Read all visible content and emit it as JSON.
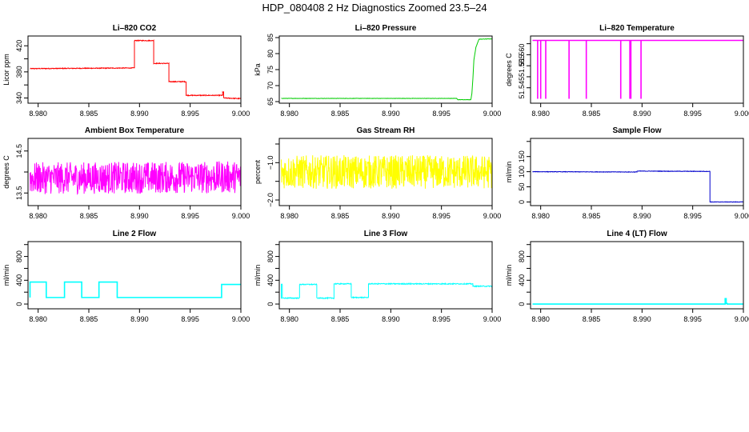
{
  "figure": {
    "title": "HDP_080408  2 Hz Diagnostics Zoomed 23.5–24"
  },
  "chart_data": [
    {
      "type": "line",
      "title": "Li–820 CO2",
      "xlabel": "",
      "ylabel": "Licor ppm",
      "color": "#ff0000",
      "xlim": [
        8.979,
        9.0
      ],
      "ylim": [
        332,
        435
      ],
      "xticks": [
        "8.980",
        "8.985",
        "8.990",
        "8.995",
        "9.000"
      ],
      "yticks": [
        340,
        360,
        380,
        400,
        420
      ],
      "ytick_labels": [
        "340",
        "",
        "380",
        "",
        "420"
      ],
      "noise": 0.6,
      "series": [
        {
          "x": [
            8.9792,
            8.9895,
            8.9895,
            8.9914,
            8.9914,
            8.9929,
            8.9929,
            8.9946,
            8.9946,
            8.9982,
            8.9982,
            8.9983,
            8.9983,
            9.0
          ],
          "y": [
            385,
            386,
            428,
            428,
            393,
            393,
            365,
            365,
            344,
            344,
            349,
            349,
            340,
            339
          ]
        }
      ]
    },
    {
      "type": "line",
      "title": "Li–820 Pressure",
      "xlabel": "",
      "ylabel": "kPa",
      "color": "#00cc00",
      "xlim": [
        8.979,
        9.0
      ],
      "ylim": [
        64.5,
        85.5
      ],
      "xticks": [
        "8.980",
        "8.985",
        "8.990",
        "8.995",
        "9.000"
      ],
      "yticks": [
        65,
        70,
        75,
        80,
        85
      ],
      "ytick_labels": [
        "65",
        "70",
        "75",
        "80",
        "85"
      ],
      "noise": 0.05,
      "series": [
        {
          "x": [
            8.9792,
            8.9965,
            8.9966,
            8.9979,
            8.998,
            8.9981,
            8.9982,
            8.9984,
            8.9987,
            9.0
          ],
          "y": [
            66.0,
            66.0,
            65.6,
            65.6,
            67.5,
            72,
            78,
            82,
            84.5,
            84.6
          ]
        }
      ]
    },
    {
      "type": "line",
      "title": "Li–820 Temperature",
      "xlabel": "",
      "ylabel": "degrees C",
      "color": "#ff00ff",
      "xlim": [
        8.979,
        9.0
      ],
      "ylim": [
        51.538,
        51.5685
      ],
      "xticks": [
        "8.980",
        "8.985",
        "8.990",
        "8.995",
        "9.000"
      ],
      "yticks": [
        51.545,
        51.55,
        51.555,
        51.56,
        51.565
      ],
      "ytick_labels": [
        "51.545",
        "",
        "51.555",
        "51.560",
        ""
      ],
      "noise": 0,
      "series": [
        {
          "x": [
            8.9792,
            8.9797,
            8.9797,
            8.9797,
            8.98,
            8.98,
            8.98,
            8.9805,
            8.9805,
            8.9805,
            8.9828,
            8.9828,
            8.9828,
            8.9845,
            8.9845,
            8.9845,
            8.9879,
            8.9879,
            8.9879,
            8.9888,
            8.9888,
            8.9888,
            8.9889,
            8.9889,
            8.9889,
            8.9899,
            8.9899,
            8.9899,
            9.0
          ],
          "y": [
            51.5665,
            51.5665,
            51.54,
            51.5665,
            51.5665,
            51.54,
            51.5665,
            51.5665,
            51.54,
            51.5665,
            51.5665,
            51.54,
            51.5665,
            51.5665,
            51.54,
            51.5665,
            51.5665,
            51.54,
            51.5665,
            51.5665,
            51.54,
            51.5665,
            51.5665,
            51.54,
            51.5665,
            51.5665,
            51.54,
            51.5665,
            51.5665
          ]
        }
      ]
    },
    {
      "type": "line",
      "title": "Ambient Box Temperature",
      "xlabel": "",
      "ylabel": "degrees C",
      "color": "#ff00ff",
      "xlim": [
        8.979,
        9.0
      ],
      "ylim": [
        13.2,
        14.8
      ],
      "xticks": [
        "8.980",
        "8.985",
        "8.990",
        "8.995",
        "9.000"
      ],
      "yticks": [
        13.5,
        14.0,
        14.5
      ],
      "ytick_labels": [
        "13.5",
        "",
        "14.5"
      ],
      "noise": 0.38,
      "series": [
        {
          "x": [
            8.9792,
            9.0
          ],
          "y": [
            13.85,
            13.88
          ]
        }
      ]
    },
    {
      "type": "line",
      "title": "Gas Stream RH",
      "xlabel": "",
      "ylabel": "percent",
      "color": "#ffff00",
      "xlim": [
        8.979,
        9.0
      ],
      "ylim": [
        -2.15,
        -0.35
      ],
      "xticks": [
        "8.980",
        "8.985",
        "8.990",
        "8.995",
        "9.000"
      ],
      "yticks": [
        -2.0,
        -1.5,
        -1.0,
        -0.5
      ],
      "ytick_labels": [
        "−2.0",
        "",
        "−1.0",
        ""
      ],
      "noise": 0.45,
      "series": [
        {
          "x": [
            8.9792,
            9.0
          ],
          "y": [
            -1.25,
            -1.25
          ]
        }
      ]
    },
    {
      "type": "line",
      "title": "Sample Flow",
      "xlabel": "",
      "ylabel": "ml/min",
      "color": "#0000cc",
      "xlim": [
        8.979,
        9.0
      ],
      "ylim": [
        -12,
        210
      ],
      "xticks": [
        "8.980",
        "8.985",
        "8.990",
        "8.995",
        "9.000"
      ],
      "yticks": [
        0,
        50,
        100,
        150,
        200
      ],
      "ytick_labels": [
        "0",
        "50",
        "100",
        "150",
        ""
      ],
      "noise": 0.8,
      "series": [
        {
          "x": [
            8.9792,
            8.9895,
            8.9895,
            8.9967,
            8.9967,
            9.0
          ],
          "y": [
            100,
            99,
            102,
            101,
            0,
            0
          ]
        }
      ]
    },
    {
      "type": "line",
      "title": "Line 2 Flow",
      "xlabel": "",
      "ylabel": "ml/min",
      "color": "#00ffff",
      "xlim": [
        8.979,
        9.0
      ],
      "ylim": [
        -80,
        1050
      ],
      "xticks": [
        "8.980",
        "8.985",
        "8.990",
        "8.995",
        "9.000"
      ],
      "yticks": [
        0,
        200,
        400,
        600,
        800,
        1000
      ],
      "ytick_labels": [
        "0",
        "",
        "400",
        "",
        "800",
        ""
      ],
      "noise": 0,
      "series": [
        {
          "x": [
            8.9792,
            8.9792,
            8.9808,
            8.9808,
            8.9826,
            8.9826,
            8.9843,
            8.9843,
            8.986,
            8.986,
            8.9878,
            8.9878,
            8.9981,
            8.9981,
            9.0
          ],
          "y": [
            110,
            370,
            370,
            110,
            110,
            370,
            370,
            110,
            110,
            370,
            370,
            110,
            110,
            330,
            330
          ]
        }
      ]
    },
    {
      "type": "line",
      "title": "Line 3 Flow",
      "xlabel": "",
      "ylabel": "ml/min",
      "color": "#00ffff",
      "xlim": [
        8.979,
        9.0
      ],
      "ylim": [
        -80,
        1050
      ],
      "xticks": [
        "8.980",
        "8.985",
        "8.990",
        "8.995",
        "9.000"
      ],
      "yticks": [
        0,
        200,
        400,
        600,
        800,
        1000
      ],
      "ytick_labels": [
        "0",
        "",
        "400",
        "",
        "800",
        ""
      ],
      "noise": 8,
      "series": [
        {
          "x": [
            8.9792,
            8.9792,
            8.9793,
            8.9793,
            8.981,
            8.981,
            8.9827,
            8.9827,
            8.9844,
            8.9844,
            8.9861,
            8.9861,
            8.9878,
            8.9878,
            8.9981,
            8.9981,
            9.0
          ],
          "y": [
            100,
            330,
            330,
            100,
            100,
            330,
            330,
            100,
            100,
            340,
            340,
            110,
            110,
            340,
            340,
            300,
            300
          ]
        }
      ]
    },
    {
      "type": "line",
      "title": "Line 4 (LT) Flow",
      "xlabel": "",
      "ylabel": "ml/min",
      "color": "#00ffff",
      "xlim": [
        8.979,
        9.0
      ],
      "ylim": [
        -80,
        1050
      ],
      "xticks": [
        "8.980",
        "8.985",
        "8.990",
        "8.995",
        "9.000"
      ],
      "yticks": [
        0,
        200,
        400,
        600,
        800,
        1000
      ],
      "ytick_labels": [
        "0",
        "",
        "400",
        "",
        "800",
        ""
      ],
      "noise": 0,
      "series": [
        {
          "x": [
            8.9792,
            8.9982,
            8.9982,
            8.9983,
            8.9983,
            8.9984,
            8.9984,
            9.0
          ],
          "y": [
            0,
            0,
            90,
            90,
            10,
            10,
            0,
            0
          ]
        }
      ]
    }
  ]
}
